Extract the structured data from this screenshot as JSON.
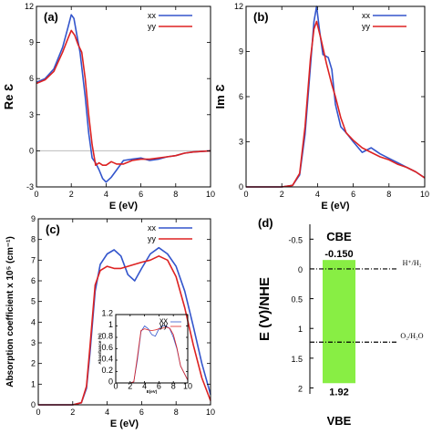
{
  "colors": {
    "xx": "#3355cc",
    "yy": "#dd2222",
    "bar": "#88ee44",
    "axis": "#000000",
    "grid": "#bbbbbb"
  },
  "legend": {
    "xx": "xx",
    "yy": "yy"
  },
  "chart_data": [
    {
      "panel": "(a)",
      "type": "line",
      "xlabel": "E (eV)",
      "ylabel": "Re Ɛ",
      "xlim": [
        0,
        10
      ],
      "ylim": [
        -3,
        12
      ],
      "xticks": [
        "0",
        "2",
        "4",
        "6",
        "8",
        "10"
      ],
      "yticks": [
        "-3",
        "0",
        "3",
        "6",
        "9",
        "12"
      ],
      "zero_line": true,
      "series": [
        {
          "name": "xx",
          "x": [
            0,
            0.5,
            1,
            1.5,
            1.8,
            2.0,
            2.15,
            2.3,
            2.5,
            2.8,
            3.0,
            3.2,
            3.4,
            3.6,
            3.8,
            4.0,
            4.3,
            4.6,
            5.0,
            5.5,
            6.0,
            6.5,
            7.0,
            7.5,
            8.0,
            8.5,
            9.0,
            9.5,
            10
          ],
          "y": [
            5.7,
            6.0,
            6.8,
            8.6,
            10.2,
            11.3,
            11.0,
            9.8,
            8.2,
            4.5,
            1.5,
            -0.6,
            -1.0,
            -1.6,
            -2.3,
            -2.6,
            -2.2,
            -1.6,
            -0.8,
            -0.7,
            -0.6,
            -0.8,
            -0.7,
            -0.5,
            -0.4,
            -0.2,
            -0.1,
            -0.05,
            0
          ]
        },
        {
          "name": "yy",
          "x": [
            0,
            0.5,
            1,
            1.5,
            1.8,
            2.0,
            2.2,
            2.4,
            2.6,
            2.8,
            3.0,
            3.2,
            3.4,
            3.6,
            3.8,
            4.0,
            4.3,
            4.6,
            5.0,
            5.5,
            6.0,
            6.5,
            7.0,
            7.5,
            8.0,
            8.5,
            9.0,
            9.5,
            10
          ],
          "y": [
            5.6,
            5.9,
            6.6,
            8.2,
            9.3,
            10.0,
            9.6,
            8.8,
            8.2,
            6.0,
            3.0,
            0.5,
            -1.2,
            -1.0,
            -1.2,
            -1.2,
            -0.9,
            -1.1,
            -1.1,
            -0.8,
            -0.7,
            -0.7,
            -0.6,
            -0.5,
            -0.4,
            -0.2,
            -0.1,
            -0.05,
            0
          ]
        }
      ]
    },
    {
      "panel": "(b)",
      "type": "line",
      "xlabel": "E (eV)",
      "ylabel": "Im Ɛ",
      "xlim": [
        0,
        10
      ],
      "ylim": [
        0,
        12
      ],
      "xticks": [
        "0",
        "2",
        "4",
        "6",
        "8",
        "10"
      ],
      "yticks": [
        "0",
        "3",
        "6",
        "9",
        "12"
      ],
      "series": [
        {
          "name": "xx",
          "x": [
            0,
            1,
            2,
            2.6,
            3.0,
            3.3,
            3.6,
            3.8,
            3.95,
            4.1,
            4.3,
            4.6,
            4.8,
            5.0,
            5.3,
            5.6,
            6.0,
            6.5,
            7.0,
            7.5,
            8.0,
            8.5,
            9.0,
            9.5,
            10
          ],
          "y": [
            0,
            0,
            0,
            0.1,
            0.8,
            3.5,
            8.0,
            11.0,
            12.0,
            10.5,
            8.8,
            8.6,
            7.8,
            5.5,
            4.0,
            3.6,
            3.0,
            2.3,
            2.6,
            2.2,
            1.9,
            1.6,
            1.3,
            1.0,
            0.6
          ]
        },
        {
          "name": "yy",
          "x": [
            0,
            1,
            2,
            2.6,
            3.0,
            3.3,
            3.6,
            3.8,
            3.95,
            4.2,
            4.5,
            4.8,
            5.0,
            5.3,
            5.6,
            6.0,
            6.5,
            7.0,
            7.5,
            8.0,
            8.5,
            9.0,
            9.5,
            10
          ],
          "y": [
            0,
            0,
            0,
            0.1,
            0.9,
            4.0,
            8.5,
            10.5,
            11.0,
            9.8,
            8.2,
            6.8,
            6.0,
            4.6,
            3.6,
            3.1,
            2.6,
            2.3,
            2.0,
            1.8,
            1.5,
            1.3,
            1.0,
            0.6
          ]
        }
      ]
    },
    {
      "panel": "(c)",
      "type": "line",
      "xlabel": "E (eV)",
      "ylabel": "Absorption coefficient x 10⁵ (cm⁻¹)",
      "xlim": [
        0,
        10
      ],
      "ylim": [
        0,
        9
      ],
      "xticks": [
        "0",
        "2",
        "4",
        "6",
        "8",
        "10"
      ],
      "yticks": [
        "0",
        "1",
        "2",
        "3",
        "4",
        "5",
        "6",
        "7",
        "8",
        "9"
      ],
      "series": [
        {
          "name": "xx",
          "x": [
            0,
            1,
            2,
            2.5,
            2.8,
            3.0,
            3.3,
            3.6,
            4.0,
            4.4,
            4.8,
            5.2,
            5.6,
            6.0,
            6.5,
            7.0,
            7.5,
            8.0,
            8.5,
            9.0,
            9.5,
            10
          ],
          "y": [
            0,
            0,
            0,
            0.1,
            0.8,
            2.5,
            5.5,
            6.8,
            7.3,
            7.5,
            7.2,
            6.3,
            6.0,
            6.6,
            7.3,
            7.6,
            7.3,
            6.7,
            5.5,
            3.8,
            2.0,
            0.5
          ]
        },
        {
          "name": "yy",
          "x": [
            0,
            1,
            2,
            2.5,
            2.8,
            3.0,
            3.3,
            3.6,
            4.0,
            4.4,
            4.8,
            5.2,
            5.6,
            6.0,
            6.5,
            7.0,
            7.5,
            8.0,
            8.5,
            9.0,
            9.5,
            10
          ],
          "y": [
            0,
            0,
            0,
            0.1,
            0.9,
            2.8,
            5.8,
            6.5,
            6.7,
            6.6,
            6.6,
            6.7,
            6.8,
            6.9,
            7.0,
            7.2,
            7.0,
            6.2,
            4.7,
            2.9,
            1.3,
            0.2
          ]
        }
      ],
      "inset": {
        "type": "line",
        "ylabel": "Absorbance (%)",
        "xlabel": "E(eV)",
        "xlim": [
          0,
          10
        ],
        "ylim": [
          0,
          1.2
        ],
        "xticks": [
          "0",
          "2",
          "4",
          "6",
          "8",
          "10"
        ],
        "yticks": [
          "0",
          "0.2",
          "0.4",
          "0.6",
          "0.8",
          "1",
          "1.2"
        ],
        "series": [
          {
            "name": "xx",
            "x": [
              0,
              2,
              2.5,
              3,
              3.5,
              4,
              4.5,
              5,
              5.5,
              6,
              6.5,
              7,
              7.5,
              8,
              8.5,
              9,
              10
            ],
            "y": [
              0,
              0,
              0.02,
              0.4,
              0.9,
              1.0,
              0.95,
              0.85,
              0.82,
              0.95,
              1.0,
              1.0,
              0.95,
              0.8,
              0.6,
              0.3,
              0.05
            ]
          },
          {
            "name": "yy",
            "x": [
              0,
              2,
              2.5,
              3,
              3.5,
              4,
              4.5,
              5,
              5.5,
              6,
              6.5,
              7,
              7.5,
              8,
              8.5,
              9,
              10
            ],
            "y": [
              0,
              0,
              0.02,
              0.45,
              0.92,
              0.95,
              0.93,
              0.92,
              0.93,
              0.95,
              0.96,
              0.98,
              0.96,
              0.85,
              0.62,
              0.3,
              0.05
            ]
          }
        ]
      }
    },
    {
      "panel": "(d)",
      "type": "bar",
      "ylabel": "E (V)/NHE",
      "ylim": [
        -0.75,
        2.1
      ],
      "yticks": [
        "-0.5",
        "0",
        "0.5",
        "1",
        "1.5",
        "2"
      ],
      "cbe_label": "CBE",
      "vbe_label": "VBE",
      "cbe": -0.15,
      "vbe": 1.92,
      "cbe_text": "-0.150",
      "vbe_text": "1.92",
      "redox": [
        {
          "label": "H⁺/H₂",
          "value": 0
        },
        {
          "label": "O₂/H₂O",
          "value": 1.23
        }
      ]
    }
  ]
}
